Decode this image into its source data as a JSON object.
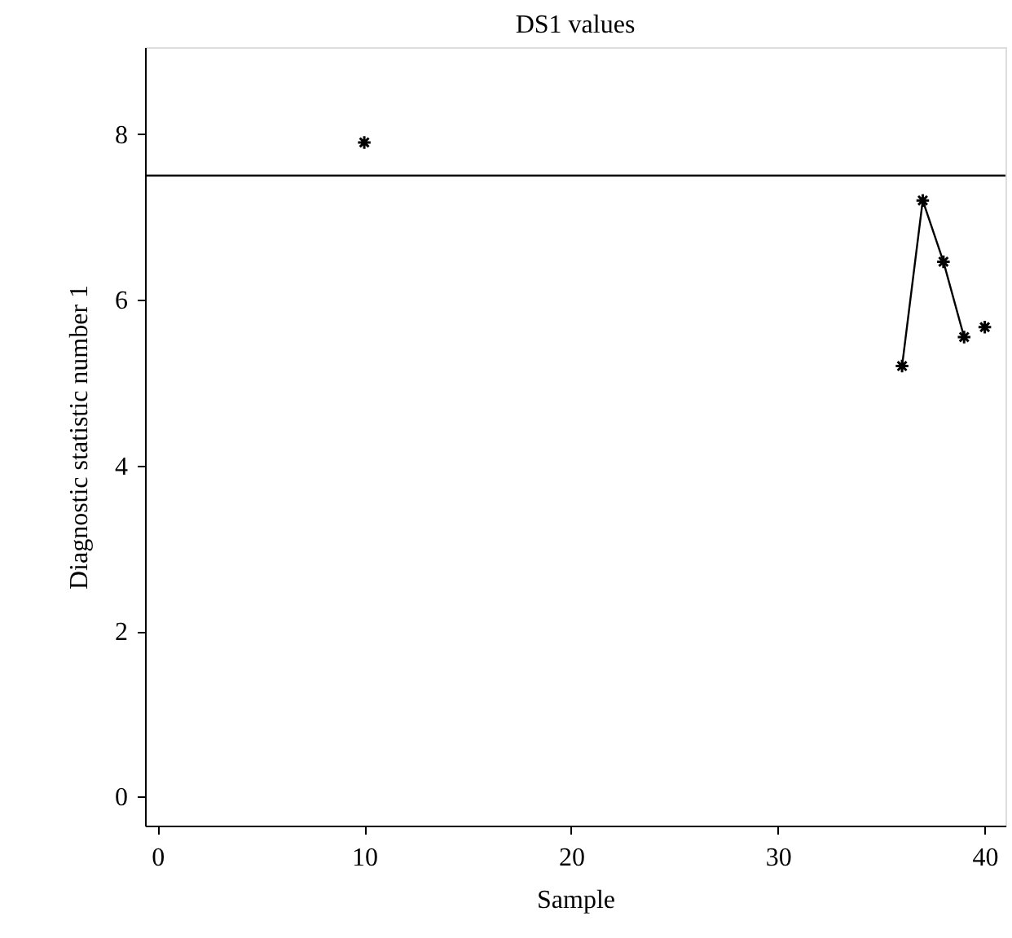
{
  "chart_data": {
    "type": "line",
    "title": "DS1 values",
    "xlabel": "Sample",
    "ylabel": "Diagnostic statistic number 1",
    "xlim": [
      -0.6,
      41
    ],
    "xticks": [
      0,
      10,
      20,
      30,
      40
    ],
    "ylim": [
      -0.35,
      9.05
    ],
    "yticks": [
      0,
      2,
      4,
      6,
      8
    ],
    "marker": "cross",
    "grid": false,
    "series": [
      {
        "color": "#000000",
        "x": [
          36,
          37,
          38,
          39
        ],
        "values": [
          5.2,
          7.2,
          6.46,
          5.55
        ]
      },
      {
        "type": "scatter",
        "color": "#000000",
        "x": [
          10,
          40
        ],
        "values": [
          7.9,
          5.67
        ]
      }
    ],
    "ref_lines": [
      {
        "axis": "y",
        "value": 7.5,
        "color": "#000000"
      }
    ]
  }
}
